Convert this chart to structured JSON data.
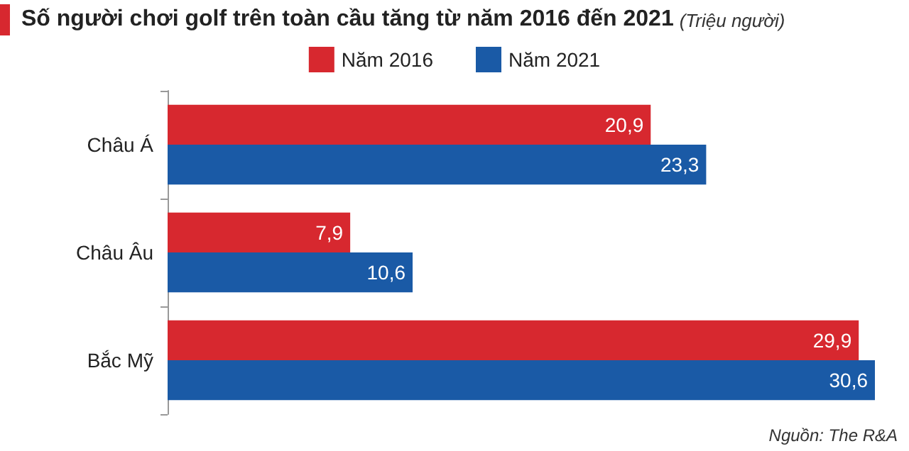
{
  "chart_data": {
    "type": "bar",
    "orientation": "horizontal",
    "title": "Số người chơi golf trên toàn cầu tăng từ năm 2016 đến 2021",
    "subtitle": "(Triệu người)",
    "annotations": [
      "Nguồn: The R&A"
    ],
    "categories": [
      "Châu Á",
      "Châu Âu",
      "Bắc Mỹ"
    ],
    "series": [
      {
        "name": "Năm 2016",
        "color": "#d7282f",
        "values": [
          20.9,
          7.9,
          29.9
        ],
        "value_labels": [
          "20,9",
          "7,9",
          "29,9"
        ]
      },
      {
        "name": "Năm 2021",
        "color": "#1a5aa6",
        "values": [
          23.3,
          10.6,
          30.6
        ],
        "value_labels": [
          "23,3",
          "10,6",
          "30,6"
        ]
      }
    ],
    "legend": "top",
    "grid": false
  }
}
